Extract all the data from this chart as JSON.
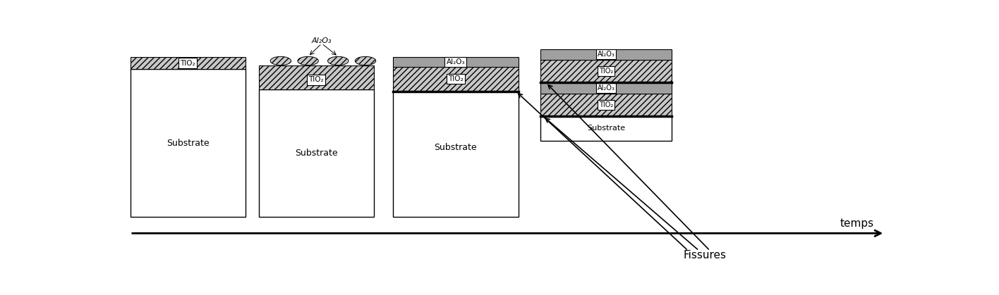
{
  "bg_color": "#ffffff",
  "label_tio2": "TIO₂",
  "label_al2o3": "Al₂O₃",
  "label_substrate": "Substrate",
  "label_temps": "temps",
  "label_fissures": "Fissures",
  "figsize": [
    14.16,
    4.19
  ],
  "dpi": 100,
  "tio2_hatch": "////",
  "al2o3_hatch": "xxxx",
  "tio2_color": "#c8c8c8",
  "al2o3_color": "#a0a0a0",
  "substrate_color": "#ffffff"
}
